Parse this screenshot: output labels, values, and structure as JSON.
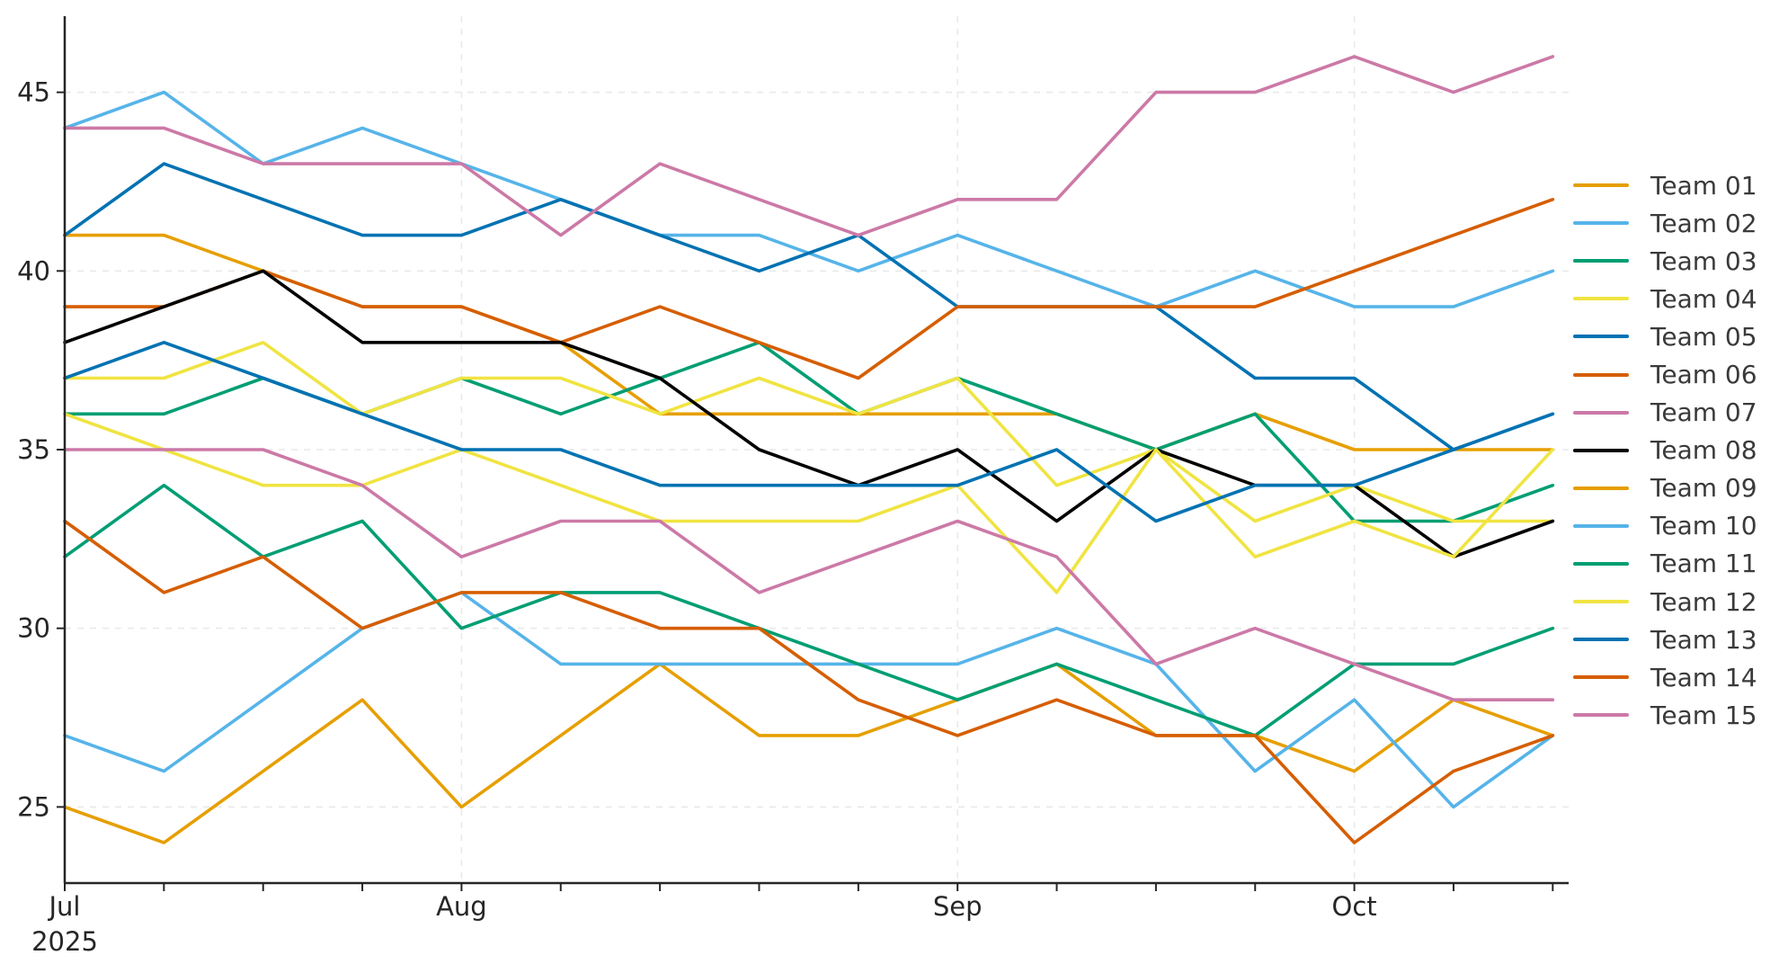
{
  "chart_data": {
    "type": "line",
    "title": "",
    "xlabel": "",
    "ylabel": "",
    "grid": "dashed",
    "legend_position": "right",
    "x_axis": {
      "point_count": 16,
      "month_ticks": [
        {
          "index": 0,
          "label": "Jul",
          "sublabel": "2025"
        },
        {
          "index": 4,
          "label": "Aug",
          "sublabel": ""
        },
        {
          "index": 9,
          "label": "Sep",
          "sublabel": ""
        },
        {
          "index": 13,
          "label": "Oct",
          "sublabel": ""
        }
      ]
    },
    "y_axis": {
      "ticks": [
        25,
        30,
        35,
        40,
        45
      ],
      "lim": [
        22.87,
        47.13
      ]
    },
    "series": [
      {
        "name": "Team 01",
        "color": "#E69F00",
        "values": [
          41,
          41,
          40,
          39,
          39,
          38,
          36,
          36,
          36,
          36,
          36,
          35,
          36,
          35,
          35,
          35
        ]
      },
      {
        "name": "Team 02",
        "color": "#56B4E9",
        "values": [
          44,
          45,
          43,
          44,
          43,
          42,
          41,
          41,
          40,
          41,
          40,
          39,
          40,
          39,
          39,
          40
        ]
      },
      {
        "name": "Team 03",
        "color": "#009E73",
        "values": [
          36,
          36,
          37,
          36,
          37,
          36,
          37,
          38,
          36,
          37,
          36,
          35,
          36,
          33,
          33,
          34
        ]
      },
      {
        "name": "Team 04",
        "color": "#F0E442",
        "values": [
          37,
          37,
          38,
          36,
          37,
          37,
          36,
          37,
          36,
          37,
          34,
          35,
          33,
          34,
          33,
          33
        ]
      },
      {
        "name": "Team 05",
        "color": "#0072B2",
        "values": [
          41,
          43,
          42,
          41,
          41,
          42,
          41,
          40,
          41,
          39,
          39,
          39,
          37,
          37,
          35,
          36
        ]
      },
      {
        "name": "Team 06",
        "color": "#D55E00",
        "values": [
          39,
          39,
          40,
          39,
          39,
          38,
          39,
          38,
          37,
          39,
          39,
          39,
          39,
          40,
          41,
          42
        ]
      },
      {
        "name": "Team 07",
        "color": "#CC79A7",
        "values": [
          44,
          44,
          43,
          43,
          43,
          41,
          43,
          42,
          41,
          42,
          42,
          45,
          45,
          46,
          45,
          46
        ]
      },
      {
        "name": "Team 08",
        "color": "#000000",
        "values": [
          38,
          39,
          40,
          38,
          38,
          38,
          37,
          35,
          34,
          35,
          33,
          35,
          34,
          34,
          32,
          33
        ]
      },
      {
        "name": "Team 09",
        "color": "#E69F00",
        "values": [
          25,
          24,
          26,
          28,
          25,
          27,
          29,
          27,
          27,
          28,
          29,
          27,
          27,
          26,
          28,
          27
        ]
      },
      {
        "name": "Team 10",
        "color": "#56B4E9",
        "values": [
          27,
          26,
          28,
          30,
          31,
          29,
          29,
          29,
          29,
          29,
          30,
          29,
          26,
          28,
          25,
          27
        ]
      },
      {
        "name": "Team 11",
        "color": "#009E73",
        "values": [
          32,
          34,
          32,
          33,
          30,
          31,
          31,
          30,
          29,
          28,
          29,
          28,
          27,
          29,
          29,
          30
        ]
      },
      {
        "name": "Team 12",
        "color": "#F0E442",
        "values": [
          36,
          35,
          34,
          34,
          35,
          34,
          33,
          33,
          33,
          34,
          31,
          35,
          32,
          33,
          32,
          35
        ]
      },
      {
        "name": "Team 13",
        "color": "#0072B2",
        "values": [
          37,
          38,
          37,
          36,
          35,
          35,
          34,
          34,
          34,
          34,
          35,
          33,
          34,
          34,
          35,
          36
        ]
      },
      {
        "name": "Team 14",
        "color": "#D55E00",
        "values": [
          33,
          31,
          32,
          30,
          31,
          31,
          30,
          30,
          28,
          27,
          28,
          27,
          27,
          24,
          26,
          27
        ]
      },
      {
        "name": "Team 15",
        "color": "#CC79A7",
        "values": [
          35,
          35,
          35,
          34,
          32,
          33,
          33,
          31,
          32,
          33,
          32,
          29,
          30,
          29,
          28,
          28
        ]
      }
    ],
    "style": {
      "line_width": 3.6,
      "grid_color": "#e8e8e8",
      "axis_color": "#262626",
      "tick_label_color": "#262626",
      "tick_label_font_px": 29,
      "legend_label_color": "#3a3a3a"
    }
  }
}
